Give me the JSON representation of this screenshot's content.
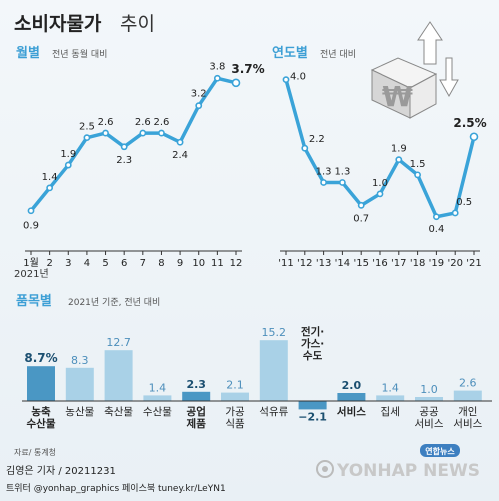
{
  "title": {
    "main": "소비자물가",
    "sub": "추이"
  },
  "monthly": {
    "label": "월별",
    "note": "전년 동월 대비",
    "year_label": "2021년"
  },
  "yearly": {
    "label": "연도별",
    "note": "전년 대비"
  },
  "items": {
    "label": "품목별",
    "note": "2021년 기준, 전년 대비"
  },
  "colors": {
    "line": "#3aa3d8",
    "accent": "#1f6e96",
    "bar_light": "#a9d1e7",
    "bar_dark": "#4a97c4",
    "header": "#4ea8d9"
  },
  "footer": {
    "source": "자료/ 통계청",
    "author": "김영은 기자 / 20211231",
    "social": "트위터 @yonhap_graphics  페이스북 tuney.kr/LeYN1",
    "logo_small": "연합뉴스",
    "logo_big": "YONHAP NEWS"
  },
  "chart_data": [
    {
      "type": "line",
      "name_label": "월별",
      "categories": [
        "1월",
        "2",
        "3",
        "4",
        "5",
        "6",
        "7",
        "8",
        "9",
        "10",
        "11",
        "12"
      ],
      "values": [
        0.9,
        1.4,
        1.9,
        2.5,
        2.6,
        2.3,
        2.6,
        2.6,
        2.4,
        3.2,
        3.8,
        3.7
      ],
      "value_labels": [
        "0.9",
        "1.4",
        "1.9",
        "2.5",
        "2.6",
        "2.3",
        "2.6",
        "2.6",
        "2.4",
        "3.2",
        "3.8",
        "3.7%"
      ],
      "ylim": [
        0.5,
        4.2
      ],
      "grid": false
    },
    {
      "type": "line",
      "name_label": "연도별",
      "categories": [
        "'11",
        "'12",
        "'13",
        "'14",
        "'15",
        "'16",
        "'17",
        "'18",
        "'19",
        "'20",
        "'21"
      ],
      "values": [
        4.0,
        2.2,
        1.3,
        1.3,
        0.7,
        1.0,
        1.9,
        1.5,
        0.4,
        0.5,
        2.5
      ],
      "value_labels": [
        "4.0",
        "2.2",
        "1.3",
        "1.3",
        "0.7",
        "1.0",
        "1.9",
        "1.5",
        "0.4",
        "0.5",
        "2.5%"
      ],
      "ylim": [
        0.0,
        4.2
      ],
      "grid": false
    },
    {
      "type": "bar",
      "name_label": "품목별",
      "categories": [
        "농축 수산물",
        "농산물",
        "축산물",
        "수산물",
        "공업 제품",
        "가공 식품",
        "석유류",
        "전기· 가스· 수도",
        "서비스",
        "집세",
        "공공 서비스",
        "개인 서비스"
      ],
      "values": [
        8.7,
        8.3,
        12.7,
        1.4,
        2.3,
        2.1,
        15.2,
        -2.1,
        2.0,
        1.4,
        1.0,
        2.6
      ],
      "value_labels": [
        "8.7%",
        "8.3",
        "12.7",
        "1.4",
        "2.3",
        "2.1",
        "15.2",
        "−2.1",
        "2.0",
        "1.4",
        "1.0",
        "2.6"
      ],
      "highlight": [
        true,
        false,
        false,
        false,
        true,
        false,
        false,
        true,
        true,
        false,
        false,
        false
      ],
      "ylim": [
        -2.5,
        16
      ]
    }
  ]
}
